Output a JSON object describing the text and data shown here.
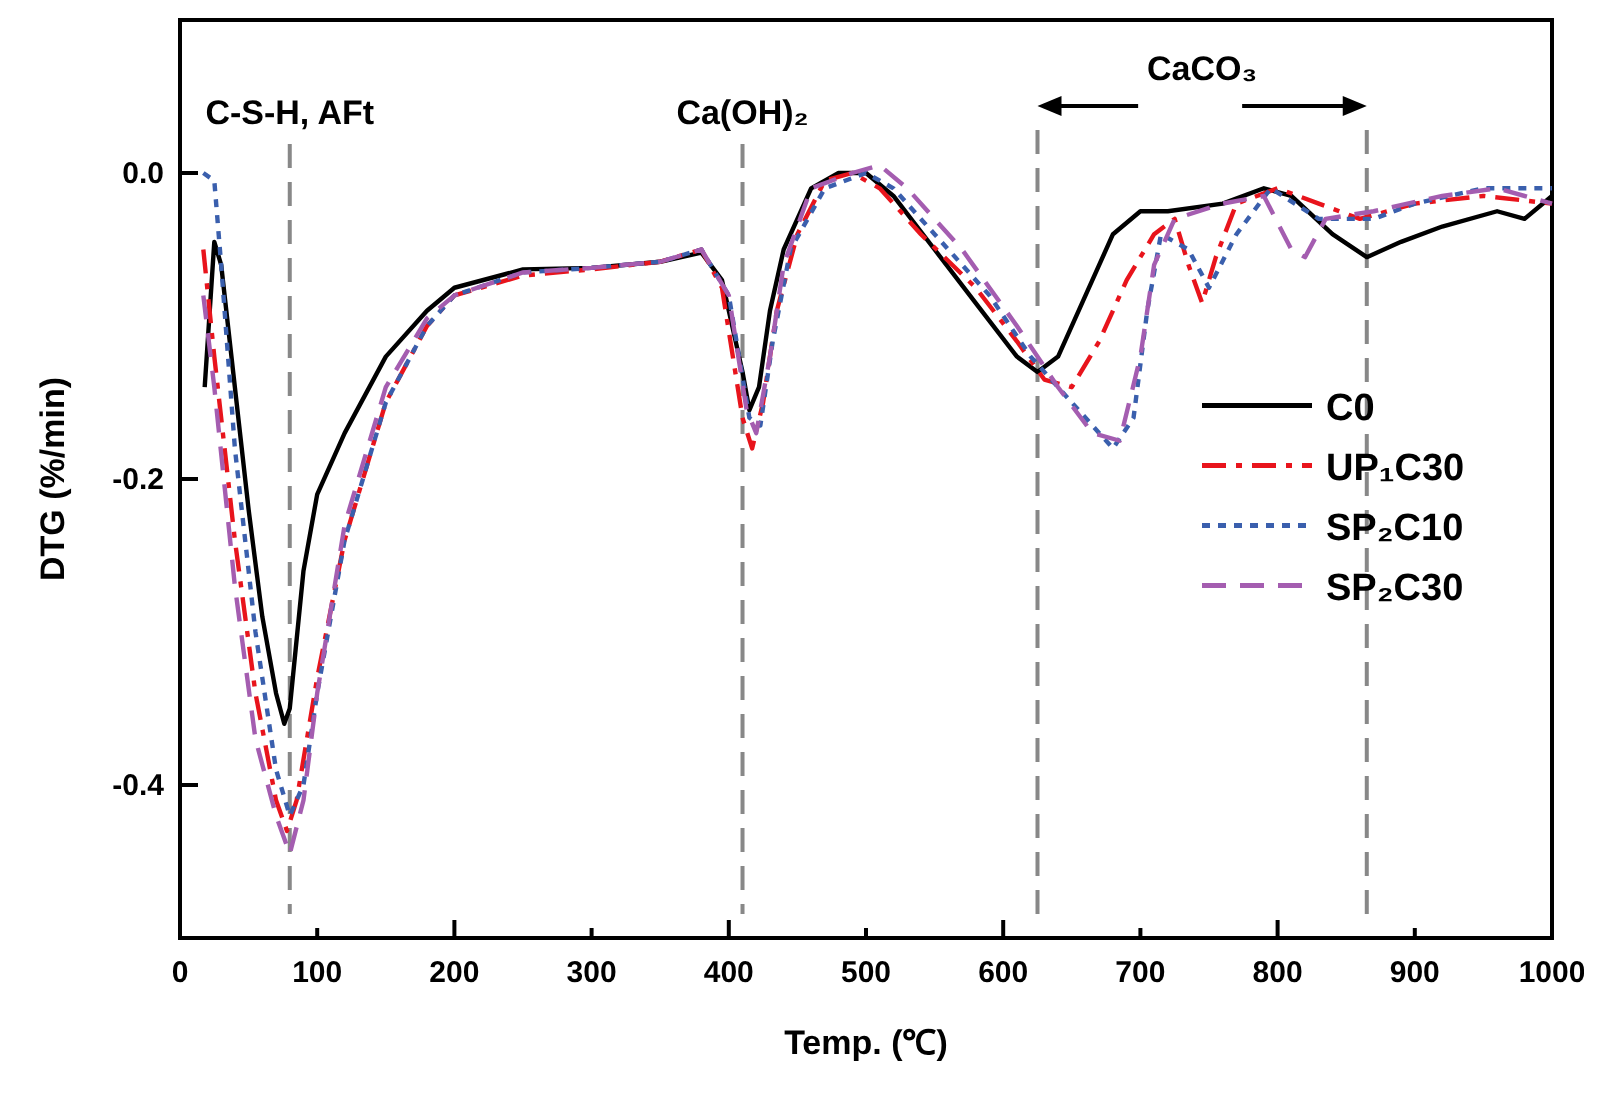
{
  "chart_data": {
    "type": "line",
    "xlabel": "Temp. (℃)",
    "ylabel": "DTG (%/min)",
    "xlim": [
      0,
      1000
    ],
    "ylim": [
      -0.5,
      0.1
    ],
    "xticks": [
      0,
      100,
      200,
      300,
      400,
      500,
      600,
      700,
      800,
      900,
      1000
    ],
    "yticks": [
      -0.4,
      -0.2,
      {
        "value": 0,
        "label": "0.0"
      }
    ],
    "grid": false,
    "legend": "right",
    "ref_lines": [
      {
        "axis": "x",
        "value": 80,
        "label": "C-S-H, AFt",
        "color": "#888888",
        "line_style": "dashed"
      },
      {
        "axis": "x",
        "value": 410,
        "label": "Ca(OH)₂",
        "color": "#888888",
        "line_style": "dashed"
      },
      {
        "axis": "x",
        "value": 625,
        "color": "#888888",
        "line_style": "dashed"
      },
      {
        "axis": "x",
        "value": 865,
        "color": "#888888",
        "line_style": "dashed"
      }
    ],
    "annotations": [
      "CaCO₃"
    ],
    "series": [
      {
        "name": "C0",
        "color": "#000000",
        "line_style": "solid",
        "x": [
          18,
          25,
          30,
          40,
          50,
          60,
          70,
          76,
          80,
          90,
          100,
          120,
          150,
          180,
          200,
          250,
          300,
          350,
          380,
          395,
          410,
          415,
          422,
          430,
          440,
          460,
          480,
          500,
          520,
          550,
          580,
          610,
          625,
          640,
          660,
          680,
          700,
          720,
          760,
          790,
          810,
          840,
          865,
          890,
          920,
          960,
          980,
          1000
        ],
        "values": [
          -0.14,
          -0.045,
          -0.06,
          -0.14,
          -0.22,
          -0.29,
          -0.34,
          -0.36,
          -0.35,
          -0.26,
          -0.21,
          -0.17,
          -0.12,
          -0.09,
          -0.075,
          -0.063,
          -0.062,
          -0.058,
          -0.052,
          -0.07,
          -0.13,
          -0.155,
          -0.14,
          -0.09,
          -0.05,
          -0.01,
          0,
          0,
          -0.015,
          -0.05,
          -0.085,
          -0.12,
          -0.13,
          -0.12,
          -0.08,
          -0.04,
          -0.025,
          -0.025,
          -0.02,
          -0.01,
          -0.015,
          -0.04,
          -0.055,
          -0.045,
          -0.035,
          -0.025,
          -0.03,
          -0.015
        ]
      },
      {
        "name": "UP₁C30",
        "color": "#e8141c",
        "line_style": "dashdot",
        "x": [
          17,
          25,
          40,
          55,
          70,
          78,
          85,
          100,
          120,
          150,
          180,
          200,
          250,
          300,
          350,
          380,
          395,
          410,
          417,
          425,
          435,
          450,
          470,
          490,
          510,
          540,
          580,
          610,
          630,
          650,
          670,
          690,
          710,
          725,
          735,
          745,
          755,
          770,
          800,
          830,
          860,
          900,
          950,
          1000
        ],
        "values": [
          -0.05,
          -0.12,
          -0.24,
          -0.34,
          -0.41,
          -0.43,
          -0.41,
          -0.33,
          -0.24,
          -0.15,
          -0.1,
          -0.08,
          -0.067,
          -0.063,
          -0.058,
          -0.05,
          -0.075,
          -0.16,
          -0.18,
          -0.15,
          -0.09,
          -0.04,
          -0.005,
          0,
          -0.01,
          -0.04,
          -0.075,
          -0.11,
          -0.135,
          -0.14,
          -0.11,
          -0.07,
          -0.04,
          -0.03,
          -0.06,
          -0.085,
          -0.055,
          -0.02,
          -0.01,
          -0.02,
          -0.03,
          -0.02,
          -0.015,
          -0.02
        ]
      },
      {
        "name": "SP₂C10",
        "color": "#3a5fad",
        "line_style": "dotted",
        "x": [
          17,
          25,
          30,
          40,
          55,
          70,
          80,
          90,
          100,
          120,
          150,
          180,
          200,
          250,
          300,
          350,
          380,
          400,
          415,
          423,
          432,
          445,
          470,
          500,
          520,
          550,
          590,
          620,
          650,
          680,
          695,
          705,
          715,
          735,
          750,
          770,
          795,
          830,
          870,
          900,
          950,
          1000
        ],
        "values": [
          0,
          -0.005,
          -0.06,
          -0.18,
          -0.3,
          -0.39,
          -0.42,
          -0.4,
          -0.34,
          -0.24,
          -0.15,
          -0.1,
          -0.08,
          -0.065,
          -0.062,
          -0.058,
          -0.05,
          -0.08,
          -0.16,
          -0.165,
          -0.11,
          -0.05,
          -0.01,
          0,
          -0.01,
          -0.04,
          -0.08,
          -0.12,
          -0.15,
          -0.18,
          -0.16,
          -0.09,
          -0.04,
          -0.05,
          -0.075,
          -0.04,
          -0.01,
          -0.03,
          -0.03,
          -0.02,
          -0.01,
          -0.01
        ]
      },
      {
        "name": "SP₂C30",
        "color": "#a45db0",
        "line_style": "dashed",
        "x": [
          17,
          25,
          40,
          55,
          70,
          80,
          90,
          100,
          120,
          150,
          180,
          200,
          250,
          300,
          350,
          380,
          400,
          413,
          420,
          430,
          440,
          460,
          490,
          510,
          530,
          570,
          610,
          640,
          665,
          685,
          700,
          710,
          725,
          760,
          790,
          810,
          820,
          835,
          870,
          920,
          960,
          1000
        ],
        "values": [
          -0.08,
          -0.14,
          -0.27,
          -0.37,
          -0.42,
          -0.445,
          -0.41,
          -0.34,
          -0.23,
          -0.14,
          -0.095,
          -0.08,
          -0.065,
          -0.062,
          -0.058,
          -0.05,
          -0.08,
          -0.155,
          -0.17,
          -0.12,
          -0.06,
          -0.01,
          0,
          0.005,
          -0.01,
          -0.05,
          -0.1,
          -0.14,
          -0.17,
          -0.175,
          -0.12,
          -0.06,
          -0.03,
          -0.02,
          -0.015,
          -0.05,
          -0.055,
          -0.03,
          -0.025,
          -0.015,
          -0.01,
          -0.02
        ]
      }
    ]
  }
}
